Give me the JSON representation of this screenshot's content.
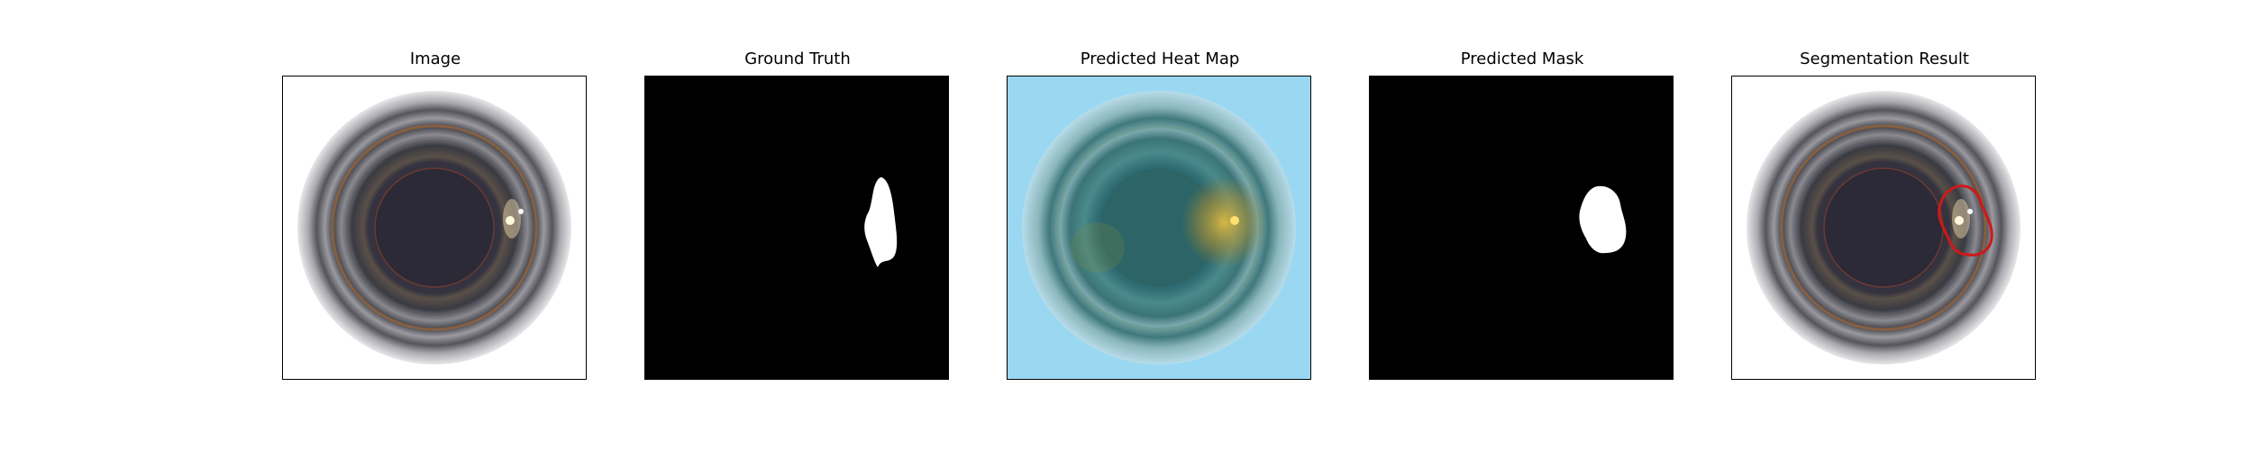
{
  "figure": {
    "panels": [
      {
        "title": "Image",
        "content": "bottle-image"
      },
      {
        "title": "Ground Truth",
        "content": "ground-truth-mask"
      },
      {
        "title": "Predicted Heat Map",
        "content": "heat-map-overlay"
      },
      {
        "title": "Predicted Mask",
        "content": "predicted-mask"
      },
      {
        "title": "Segmentation Result",
        "content": "segmentation-overlay"
      }
    ],
    "colors": {
      "mask_background": "#000000",
      "mask_foreground": "#ffffff",
      "contour": "#d01818",
      "heat_background": "#9ad8f2"
    }
  }
}
